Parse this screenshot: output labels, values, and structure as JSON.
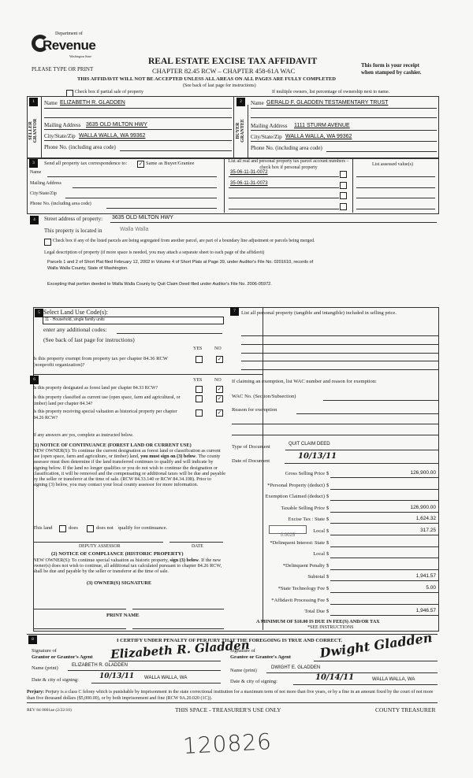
{
  "logo": {
    "dept": "Department of",
    "name": "Revenue",
    "state": "Washington State"
  },
  "header": {
    "please_type": "PLEASE TYPE OR PRINT",
    "title": "REAL ESTATE EXCISE TAX AFFIDAVIT",
    "chapter": "CHAPTER 82.45 RCW – CHAPTER 458-61A WAC",
    "warning": "THIS AFFIDAVIT WILL NOT BE ACCEPTED UNLESS ALL AREAS ON ALL PAGES ARE FULLY COMPLETED",
    "see_back": "(See back of last page for instructions)",
    "receipt1": "This form is your receipt",
    "receipt2": "when stamped by cashier.",
    "partial_sale": "Check box if partial sale of property",
    "multiple_owners": "If multiple owners, list percentage of ownership next to name."
  },
  "seller": {
    "num": "1",
    "side_label": "SELLER GRANTOR",
    "name_label": "Name",
    "name": "ELIZABETH R. GLADDEN",
    "mailing_label": "Mailing Address",
    "mailing": "3635 OLD MILTON HWY",
    "city_label": "City/State/Zip",
    "city": "WALLA WALLA, WA  99362",
    "phone_label": "Phone No. (including area code)"
  },
  "buyer": {
    "num": "2",
    "side_label": "BUYER GRANTEE",
    "name_label": "Name",
    "name": "GERALD F. GLADDEN TESTAMENTARY TRUST",
    "mailing_label": "Mailing Address",
    "mailing": "1111 STURM AVENUE",
    "city_label": "City/State/Zip",
    "city": "WALLA WALLA, WA  99362",
    "phone_label": "Phone No. (including area code)"
  },
  "section3": {
    "num": "3",
    "send_label": "Send all property tax correspondence to:",
    "same_as": "Same as Buyer/Grantee",
    "same_checked": true,
    "name_label": "Name",
    "mailing_label": "Mailing Address",
    "city_label": "City/State/Zip",
    "phone_label": "Phone No. (including area code)",
    "parcel_header": "List all real and personal property tax parcel account numbers – check box if personal property",
    "assessed_header": "List assessed value(s)",
    "parcels": [
      "35-06-11-31-0072",
      "35-06-11-31-0073",
      "",
      ""
    ]
  },
  "section4": {
    "num": "4",
    "street_label": "Street address of property:",
    "street": "3635 OLD MILTON HWY",
    "located_label": "This property is located in",
    "located": "Walla Walla",
    "segregated": "Check box if any of the listed parcels are being segregated from another parcel, are part of a boundary line adjustment or parcels being merged.",
    "legal_label": "Legal description of property (if more space is needed, you may attach a separate sheet to each page of the affidavit)",
    "legal1": "Parcels 1 and 2 of Short Plat filed February 12, 2002 in Volume 4 of Short Plats at Page 39, under Auditor's File No. 0201610, records of",
    "legal2": "Walla Walla County, State of Washington.",
    "legal3": "Excepting that portion deeded to Walla Walla County by Quit Claim Deed filed under Auditor's File No. 2006-05972."
  },
  "section5": {
    "num": "5",
    "select_label": "Select Land Use Code(s):",
    "code": "11 - Household, single family units",
    "additional": "enter any additional codes:",
    "see_back": "(See back of last page for instructions)",
    "yes": "YES",
    "no": "NO",
    "exempt_q": "Is this property exempt from property tax per chapter 84.36 RCW (nonprofit organization)?",
    "exempt_no": true
  },
  "section6": {
    "num": "6",
    "yes": "YES",
    "no": "NO",
    "questions": [
      {
        "q": "Is this property designated as forest land per chapter 84.33 RCW?",
        "no": true
      },
      {
        "q": "Is this property classified as current use (open space, farm and agricultural, or timber) land per chapter 84.34?",
        "no": true
      },
      {
        "q": "Is this property receiving special valuation as historical property per chapter 84.26 RCW?",
        "no": true
      }
    ],
    "if_yes": "If any answers are yes, complete as instructed below.",
    "n1_title": "(1) NOTICE OF CONTINUANCE (FOREST LAND OR CURRENT USE)",
    "n1_a": "NEW OWNER(S): To continue the current designation as forest land or classification as current use (open space, farm and agriculture, or timber) land,",
    "n1_b": "you must sign on (3) below",
    "n1_c": ". The county assessor must then determine if the land transferred continues to qualify and will indicate by signing below. If the land no longer qualifies or you do not wish to continue the designation or classification, it will be removed and the compensating or additional taxes will be due and payable by the seller or transferor at the time of sale. (RCW 84.33.140 or RCW 84.34.108). Prior to signing (3) below, you may contact your local county assessor for more information.",
    "this_land": "This land",
    "does": "does",
    "does_not": "does not",
    "qualify": "qualify for continuance.",
    "deputy": "DEPUTY ASSESSOR",
    "date": "DATE",
    "n2_title": "(2) NOTICE OF COMPLIANCE (HISTORIC PROPERTY)",
    "n2_a": "NEW OWNER(S): To continue special valuation as historic property,",
    "n2_b": "sign (3) below",
    "n2_c": ". If the new owner(s) does not wish to continue, all additional tax calculated pursuant to chapter 84.26 RCW, shall be due and payable by the seller or transferor at the time of sale.",
    "n3_title": "(3) OWNER(S) SIGNATURE",
    "print_name": "PRINT NAME"
  },
  "section7": {
    "num": "7",
    "personal_label": "List all  personal property (tangible and intangible) included in selling price.",
    "exemption_label": "If claiming an exemption, list WAC number and reason for exemption:",
    "wac_label": "WAC No. (Section/Subsection)",
    "reason_label": "Reason for exemption",
    "doc_type_label": "Type of Document",
    "doc_type": "QUIT CLAIM DEED",
    "doc_date_label": "Date of Document",
    "doc_date": "10/13/11",
    "local_rate": "0.0025",
    "fees": [
      {
        "label": "Gross Selling Price",
        "value": "126,900.00"
      },
      {
        "label": "*Personal Property (deduct)",
        "value": ""
      },
      {
        "label": "Exemption Claimed (deduct)",
        "value": ""
      },
      {
        "label": "Taxable Selling Price",
        "value": "126,900.00"
      },
      {
        "label": "Excise Tax : State",
        "value": "1,624.32"
      },
      {
        "label": "Local",
        "value": "317.25"
      },
      {
        "label": "*Delinquent Interest: State",
        "value": ""
      },
      {
        "label": "Local",
        "value": ""
      },
      {
        "label": "*Delinquent Penalty",
        "value": ""
      },
      {
        "label": "Subtotal",
        "value": "1,941.57"
      },
      {
        "label": "*State Technology Fee",
        "value": "5.00"
      },
      {
        "label": "*Affidavit Processing Fee",
        "value": ""
      },
      {
        "label": "Total Due",
        "value": "1,946.57"
      }
    ],
    "currency": "$",
    "minimum": "A MINIMUM OF $10.00 IS DUE IN FEE(S) AND/OR TAX",
    "see_instr": "*SEE INSTRUCTIONS"
  },
  "section8": {
    "num": "8",
    "certify": "I CERTIFY UNDER PENALTY OF PERJURY THAT THE FOREGOING IS TRUE AND CORRECT.",
    "grantor_sig_label1": "Signature of",
    "grantor_sig_label2": "Grantor or Grantor's Agent",
    "grantor_sig": "Elizabeth R. Gladden",
    "grantee_sig_label1": "Signature of",
    "grantee_sig_label2": "Grantee or Grantee's Agent",
    "grantee_sig": "Dwight Gladden",
    "name_print_label": "Name (print)",
    "grantor_name": "ELIZABETH R. GLADDEN",
    "grantee_name": "DWIGHT E. GLADDEN",
    "date_city_label": "Date & city of signing:",
    "grantor_date": "10/13/11",
    "grantor_city": "WALLA WALLA, WA",
    "grantee_date": "10/14/11",
    "grantee_city": "WALLA WALLA, WA"
  },
  "footer": {
    "perjury_bold": "Perjury:",
    "perjury": " Perjury is a class C felony which is punishable by imprisonment in the state correctional institution for a maximum term of not more than five years, or by a fine in an amount fixed by the court of not more than five thousand dollars ($5,000.00), or by both imprisonment and fine (RCW 9A.20.020 (1C)).",
    "rev": "REV 84 0001ae (2/22/10)",
    "treasurer_space": "THIS SPACE - TREASURER'S USE ONLY",
    "county_treasurer": "COUNTY TREASURER"
  },
  "stamp_number": "120826"
}
